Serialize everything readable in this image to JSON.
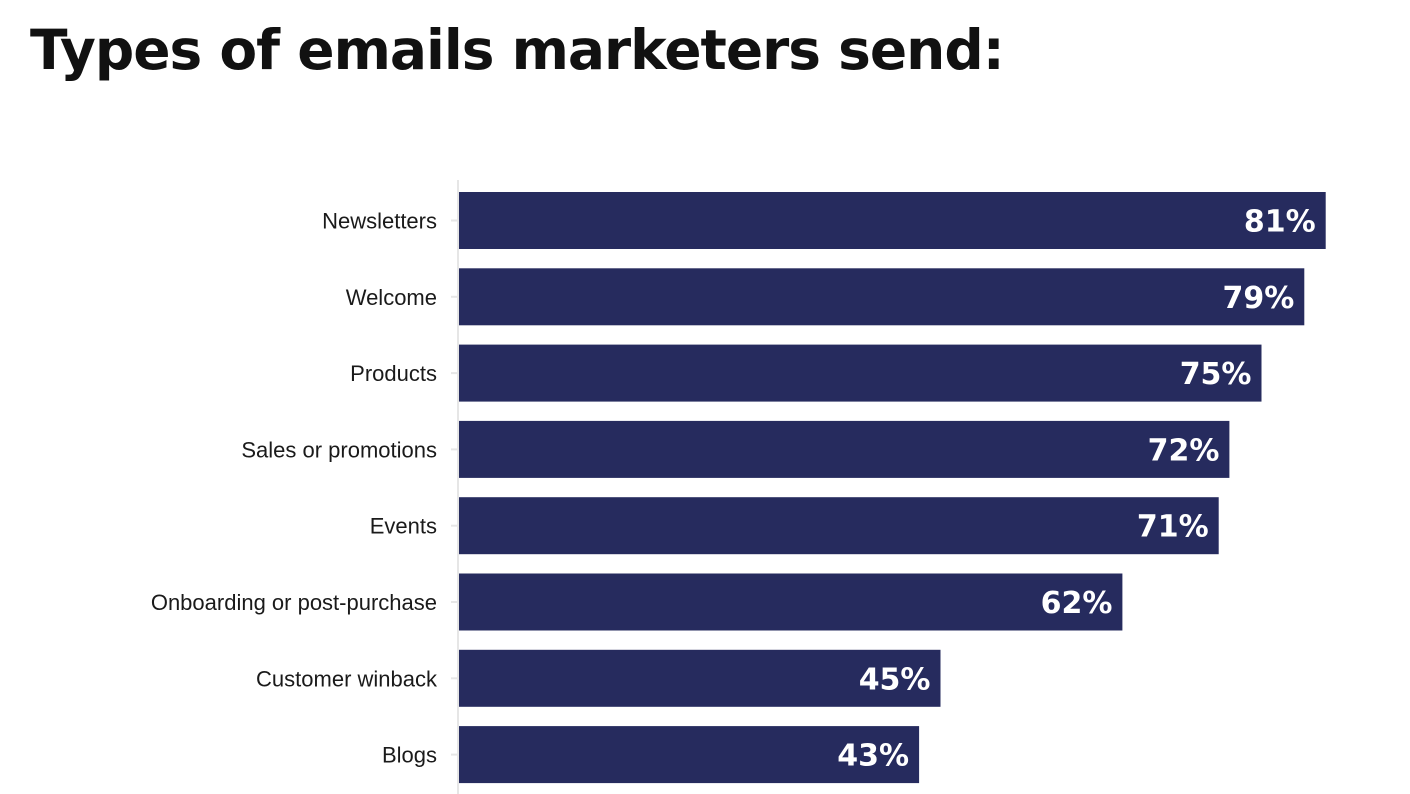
{
  "chart_data": {
    "type": "bar",
    "orientation": "horizontal",
    "title": "Types of emails marketers send:",
    "categories": [
      "Newsletters",
      "Welcome",
      "Products",
      "Sales or promotions",
      "Events",
      "Onboarding or post-purchase",
      "Customer winback",
      "Blogs"
    ],
    "values": [
      81,
      79,
      75,
      72,
      71,
      62,
      45,
      43
    ],
    "value_labels": [
      "81%",
      "79%",
      "75%",
      "72%",
      "71%",
      "62%",
      "45%",
      "43%"
    ],
    "unit": "%",
    "xlim": [
      0,
      100
    ],
    "grid": false,
    "legend": "none",
    "colors": {
      "bar": "#262b5e",
      "axis": "#e6e6e6",
      "title": "#111111",
      "category_text": "#1a1a1a",
      "value_text": "#ffffff"
    }
  }
}
